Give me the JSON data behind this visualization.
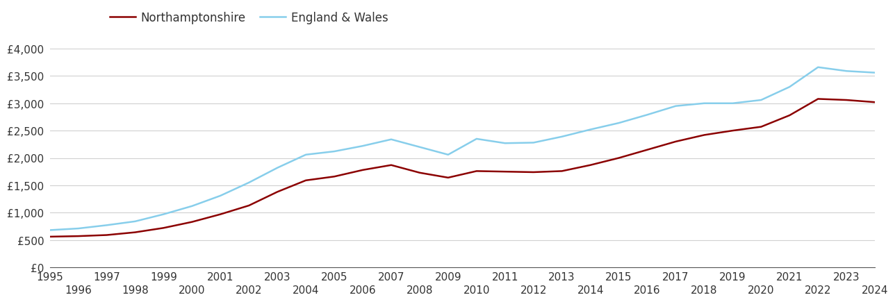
{
  "years": [
    1995,
    1996,
    1997,
    1998,
    1999,
    2000,
    2001,
    2002,
    2003,
    2004,
    2005,
    2006,
    2007,
    2008,
    2009,
    2010,
    2011,
    2012,
    2013,
    2014,
    2015,
    2016,
    2017,
    2018,
    2019,
    2020,
    2021,
    2022,
    2023,
    2024
  ],
  "northants": [
    560,
    570,
    590,
    640,
    720,
    830,
    970,
    1130,
    1380,
    1590,
    1660,
    1780,
    1870,
    1730,
    1640,
    1760,
    1750,
    1740,
    1760,
    1870,
    2000,
    2150,
    2300,
    2420,
    2500,
    2570,
    2780,
    3080,
    3060,
    3020
  ],
  "england_wales": [
    680,
    710,
    770,
    840,
    970,
    1120,
    1310,
    1550,
    1820,
    2060,
    2120,
    2220,
    2340,
    2200,
    2060,
    2350,
    2270,
    2280,
    2390,
    2520,
    2640,
    2790,
    2950,
    3000,
    3000,
    3060,
    3300,
    3660,
    3590,
    3560
  ],
  "northants_color": "#8B0000",
  "england_wales_color": "#87CEEB",
  "northants_label": "Northamptonshire",
  "england_wales_label": "England & Wales",
  "ylim": [
    0,
    4000
  ],
  "yticks": [
    0,
    500,
    1000,
    1500,
    2000,
    2500,
    3000,
    3500,
    4000
  ],
  "ytick_labels": [
    "£0",
    "£500",
    "£1,000",
    "£1,500",
    "£2,000",
    "£2,500",
    "£3,000",
    "£3,500",
    "£4,000"
  ],
  "background_color": "#ffffff",
  "grid_color": "#d0d0d0",
  "line_width": 1.8,
  "legend_fontsize": 12,
  "tick_fontsize": 11
}
